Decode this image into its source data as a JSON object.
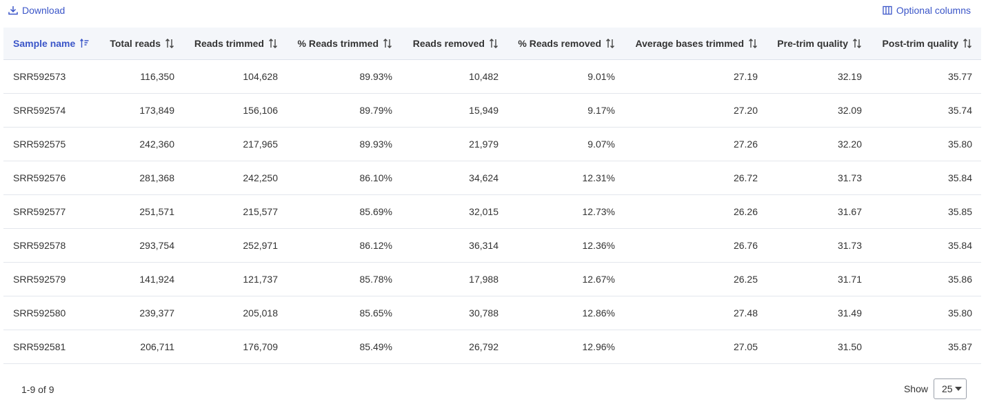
{
  "toolbar": {
    "download_label": "Download",
    "optional_columns_label": "Optional columns",
    "accent": "#3a55c8"
  },
  "table": {
    "columns": [
      {
        "label": "Sample name"
      },
      {
        "label": "Total reads"
      },
      {
        "label": "Reads trimmed"
      },
      {
        "label": "% Reads trimmed"
      },
      {
        "label": "Reads removed"
      },
      {
        "label": "% Reads removed"
      },
      {
        "label": "Average bases trimmed"
      },
      {
        "label": "Pre-trim quality"
      },
      {
        "label": "Post-trim quality"
      }
    ],
    "rows": [
      [
        "SRR592573",
        "116,350",
        "104,628",
        "89.93%",
        "10,482",
        "9.01%",
        "27.19",
        "32.19",
        "35.77"
      ],
      [
        "SRR592574",
        "173,849",
        "156,106",
        "89.79%",
        "15,949",
        "9.17%",
        "27.20",
        "32.09",
        "35.74"
      ],
      [
        "SRR592575",
        "242,360",
        "217,965",
        "89.93%",
        "21,979",
        "9.07%",
        "27.26",
        "32.20",
        "35.80"
      ],
      [
        "SRR592576",
        "281,368",
        "242,250",
        "86.10%",
        "34,624",
        "12.31%",
        "26.72",
        "31.73",
        "35.84"
      ],
      [
        "SRR592577",
        "251,571",
        "215,577",
        "85.69%",
        "32,015",
        "12.73%",
        "26.26",
        "31.67",
        "35.85"
      ],
      [
        "SRR592578",
        "293,754",
        "252,971",
        "86.12%",
        "36,314",
        "12.36%",
        "26.76",
        "31.73",
        "35.84"
      ],
      [
        "SRR592579",
        "141,924",
        "121,737",
        "85.78%",
        "17,988",
        "12.67%",
        "26.25",
        "31.71",
        "35.86"
      ],
      [
        "SRR592580",
        "239,377",
        "205,018",
        "85.65%",
        "30,788",
        "12.86%",
        "27.48",
        "31.49",
        "35.80"
      ],
      [
        "SRR592581",
        "206,711",
        "176,709",
        "85.49%",
        "26,792",
        "12.96%",
        "27.05",
        "31.50",
        "35.87"
      ]
    ]
  },
  "footer": {
    "range_text": "1-9 of 9",
    "show_label": "Show",
    "page_size": "25"
  }
}
